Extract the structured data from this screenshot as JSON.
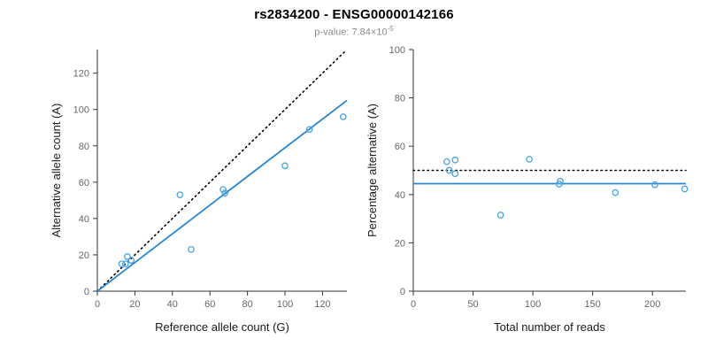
{
  "header": {
    "title": "rs2834200 - ENSG00000142166",
    "p_value_base": "p-value: 7.84×10",
    "p_value_exponent": "-5"
  },
  "colors": {
    "points": "#4AA3DD",
    "regression_line": "#2A87D0",
    "identity_line": "#000000",
    "axis": "#333333",
    "tick_label": "#666666",
    "axis_title": "#1a1a1a"
  },
  "chart_data": [
    {
      "type": "scatter",
      "title": "",
      "xlabel": "Reference allele count (G)",
      "ylabel": "Alternative allele count (A)",
      "xlim": [
        0,
        133
      ],
      "ylim": [
        0,
        133
      ],
      "xticks": [
        0,
        20,
        40,
        60,
        80,
        100,
        120
      ],
      "yticks": [
        0,
        20,
        40,
        60,
        80,
        100,
        120
      ],
      "grid": false,
      "legend": "none",
      "points": [
        [
          13,
          15
        ],
        [
          15,
          15
        ],
        [
          16,
          19
        ],
        [
          18,
          17
        ],
        [
          44,
          53
        ],
        [
          50,
          23
        ],
        [
          67,
          56
        ],
        [
          68,
          54
        ],
        [
          100,
          69
        ],
        [
          113,
          89
        ],
        [
          131,
          96
        ]
      ],
      "lines": [
        {
          "name": "identity-line",
          "style": "dotted",
          "color": "#000000",
          "from": [
            0,
            0
          ],
          "to": [
            132,
            132
          ]
        },
        {
          "name": "regression-line",
          "style": "solid",
          "color": "#2A87D0",
          "from": [
            0,
            0
          ],
          "to": [
            133,
            105
          ]
        }
      ]
    },
    {
      "type": "scatter",
      "title": "",
      "xlabel": "Total number of reads",
      "ylabel": "Percentage alternative (A)",
      "xlim": [
        0,
        228
      ],
      "ylim": [
        0,
        100
      ],
      "xticks": [
        0,
        50,
        100,
        150,
        200
      ],
      "yticks": [
        0,
        20,
        40,
        60,
        80,
        100
      ],
      "grid": false,
      "legend": "none",
      "points": [
        [
          28,
          53.6
        ],
        [
          30,
          50.0
        ],
        [
          35,
          54.3
        ],
        [
          35,
          48.6
        ],
        [
          73,
          31.5
        ],
        [
          97,
          54.6
        ],
        [
          122,
          44.3
        ],
        [
          123,
          45.5
        ],
        [
          169,
          40.8
        ],
        [
          202,
          44.1
        ],
        [
          227,
          42.3
        ]
      ],
      "lines": [
        {
          "name": "expected-50pct-line",
          "style": "dotted",
          "color": "#000000",
          "from": [
            0,
            50
          ],
          "to": [
            228,
            50
          ]
        },
        {
          "name": "mean-percentage-line",
          "style": "solid",
          "color": "#2A87D0",
          "from": [
            0,
            44.5
          ],
          "to": [
            228,
            44.5
          ]
        }
      ]
    }
  ]
}
